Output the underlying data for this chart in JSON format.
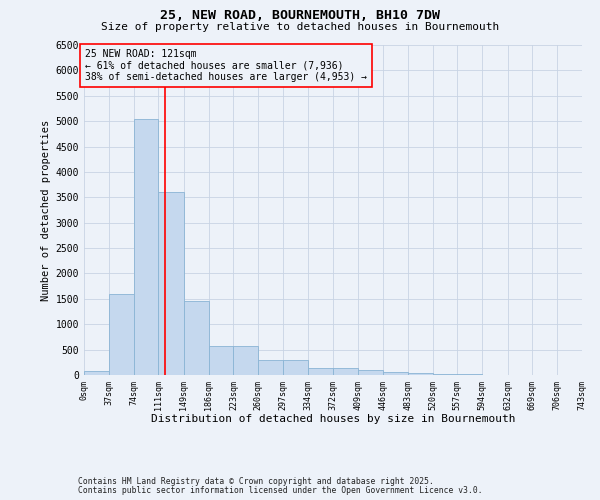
{
  "title_line1": "25, NEW ROAD, BOURNEMOUTH, BH10 7DW",
  "title_line2": "Size of property relative to detached houses in Bournemouth",
  "xlabel": "Distribution of detached houses by size in Bournemouth",
  "ylabel": "Number of detached properties",
  "footnote1": "Contains HM Land Registry data © Crown copyright and database right 2025.",
  "footnote2": "Contains public sector information licensed under the Open Government Licence v3.0.",
  "annotation_line1": "25 NEW ROAD: 121sqm",
  "annotation_line2": "← 61% of detached houses are smaller (7,936)",
  "annotation_line3": "38% of semi-detached houses are larger (4,953) →",
  "property_size": 121,
  "bin_edges": [
    0,
    37,
    74,
    111,
    149,
    186,
    223,
    260,
    297,
    334,
    372,
    409,
    446,
    483,
    520,
    557,
    594,
    632,
    669,
    706,
    743
  ],
  "bar_heights": [
    75,
    1600,
    5050,
    3600,
    1450,
    580,
    570,
    290,
    300,
    145,
    140,
    100,
    60,
    30,
    15,
    10,
    8,
    5,
    3,
    2
  ],
  "bar_color": "#c5d8ee",
  "bar_edge_color": "#8ab4d4",
  "vline_color": "red",
  "vline_x": 121,
  "annotation_box_color": "red",
  "background_color": "#edf2f9",
  "ylim": [
    0,
    6500
  ],
  "yticks": [
    0,
    500,
    1000,
    1500,
    2000,
    2500,
    3000,
    3500,
    4000,
    4500,
    5000,
    5500,
    6000,
    6500
  ],
  "grid_color": "#c8d4e4"
}
